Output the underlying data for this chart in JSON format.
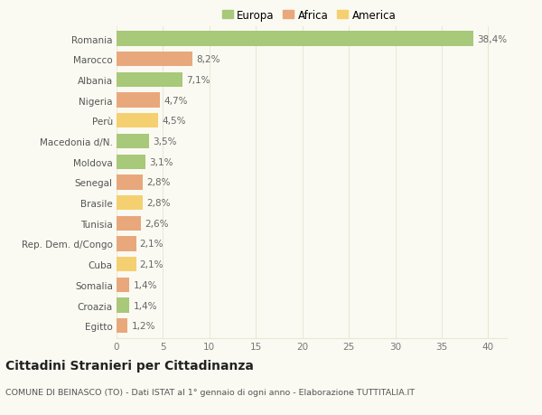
{
  "countries": [
    "Romania",
    "Marocco",
    "Albania",
    "Nigeria",
    "Perù",
    "Macedonia d/N.",
    "Moldova",
    "Senegal",
    "Brasile",
    "Tunisia",
    "Rep. Dem. d/Congo",
    "Cuba",
    "Somalia",
    "Croazia",
    "Egitto"
  ],
  "values": [
    38.4,
    8.2,
    7.1,
    4.7,
    4.5,
    3.5,
    3.1,
    2.8,
    2.8,
    2.6,
    2.1,
    2.1,
    1.4,
    1.4,
    1.2
  ],
  "labels": [
    "38,4%",
    "8,2%",
    "7,1%",
    "4,7%",
    "4,5%",
    "3,5%",
    "3,1%",
    "2,8%",
    "2,8%",
    "2,6%",
    "2,1%",
    "2,1%",
    "1,4%",
    "1,4%",
    "1,2%"
  ],
  "colors": [
    "#a8c87a",
    "#e8a87c",
    "#a8c87a",
    "#e8a87c",
    "#f5d070",
    "#a8c87a",
    "#a8c87a",
    "#e8a87c",
    "#f5d070",
    "#e8a87c",
    "#e8a87c",
    "#f5d070",
    "#e8a87c",
    "#a8c87a",
    "#e8a87c"
  ],
  "legend_labels": [
    "Europa",
    "Africa",
    "America"
  ],
  "legend_colors": [
    "#a8c87a",
    "#e8a87c",
    "#f5d070"
  ],
  "title": "Cittadini Stranieri per Cittadinanza",
  "subtitle": "COMUNE DI BEINASCO (TO) - Dati ISTAT al 1° gennaio di ogni anno - Elaborazione TUTTITALIA.IT",
  "xlim": [
    0,
    42
  ],
  "xticks": [
    0,
    5,
    10,
    15,
    20,
    25,
    30,
    35,
    40
  ],
  "background_color": "#fafaf2",
  "grid_color": "#e8e8d8",
  "bar_height": 0.72,
  "label_fontsize": 7.5,
  "tick_fontsize": 7.5,
  "title_fontsize": 10,
  "subtitle_fontsize": 6.8
}
